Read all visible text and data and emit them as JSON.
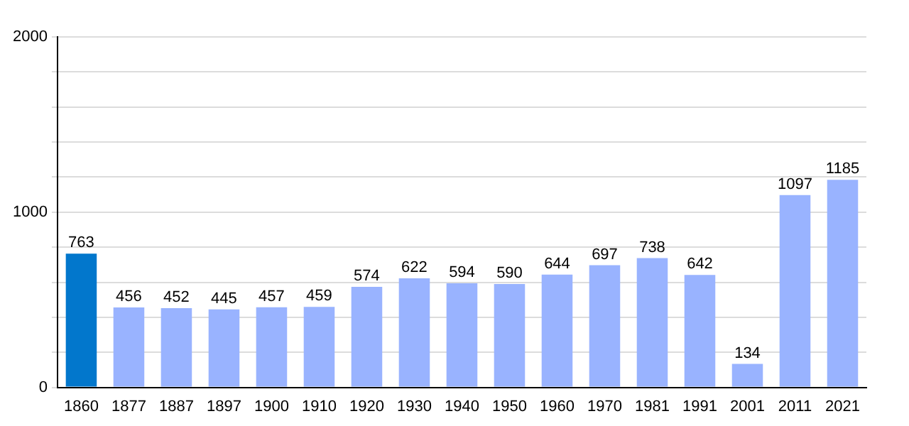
{
  "chart_data": {
    "type": "bar",
    "categories": [
      "1860",
      "1877",
      "1887",
      "1897",
      "1900",
      "1910",
      "1920",
      "1930",
      "1940",
      "1950",
      "1960",
      "1970",
      "1981",
      "1991",
      "2001",
      "2011",
      "2021"
    ],
    "values": [
      763,
      456,
      452,
      445,
      457,
      459,
      574,
      622,
      594,
      590,
      644,
      697,
      738,
      642,
      134,
      1097,
      1185
    ],
    "colors": [
      "#0277cc",
      "#99b3ff",
      "#99b3ff",
      "#99b3ff",
      "#99b3ff",
      "#99b3ff",
      "#99b3ff",
      "#99b3ff",
      "#99b3ff",
      "#99b3ff",
      "#99b3ff",
      "#99b3ff",
      "#99b3ff",
      "#99b3ff",
      "#99b3ff",
      "#99b3ff",
      "#99b3ff"
    ],
    "ylim": [
      0,
      2000
    ],
    "yticks": [
      0,
      {
        "value": 200,
        "label": null
      },
      {
        "value": 400,
        "label": null
      },
      {
        "value": 600,
        "label": null
      },
      {
        "value": 800,
        "label": null
      },
      1000,
      {
        "value": 1200,
        "label": null
      },
      {
        "value": 1400,
        "label": null
      },
      {
        "value": 1600,
        "label": null
      },
      {
        "value": 1800,
        "label": null
      },
      2000
    ],
    "grid": "y",
    "data_labels": true,
    "legend": false
  }
}
